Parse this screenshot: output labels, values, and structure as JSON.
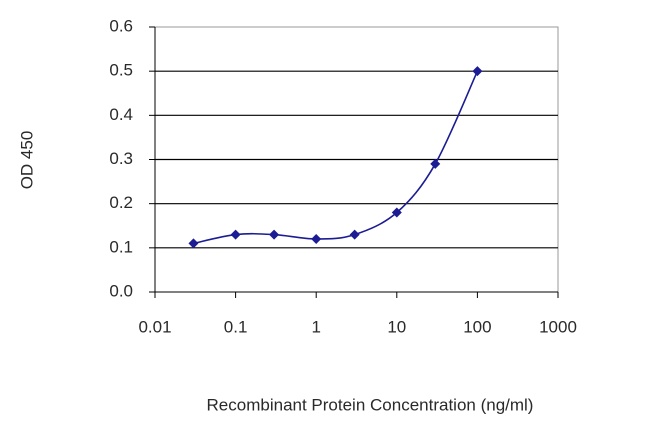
{
  "chart_data": {
    "type": "line",
    "x_label": "Recombinant Protein Concentration (ng/ml)",
    "y_label": "OD 450",
    "x": [
      0.03,
      0.1,
      0.3,
      1,
      3,
      10,
      30,
      100
    ],
    "values": [
      0.11,
      0.13,
      0.13,
      0.12,
      0.13,
      0.18,
      0.29,
      0.5
    ],
    "color": "#1c1c94",
    "xscale": "log",
    "xlim": [
      0.01,
      1000
    ],
    "xticks": [
      0.01,
      0.1,
      1,
      10,
      100,
      1000
    ],
    "ylim": [
      0,
      0.6
    ],
    "yticks": [
      {
        "value": 0,
        "label": "0.0"
      },
      0.1,
      0.2,
      0.3,
      0.4,
      0.5,
      0.6
    ],
    "grid": true
  }
}
